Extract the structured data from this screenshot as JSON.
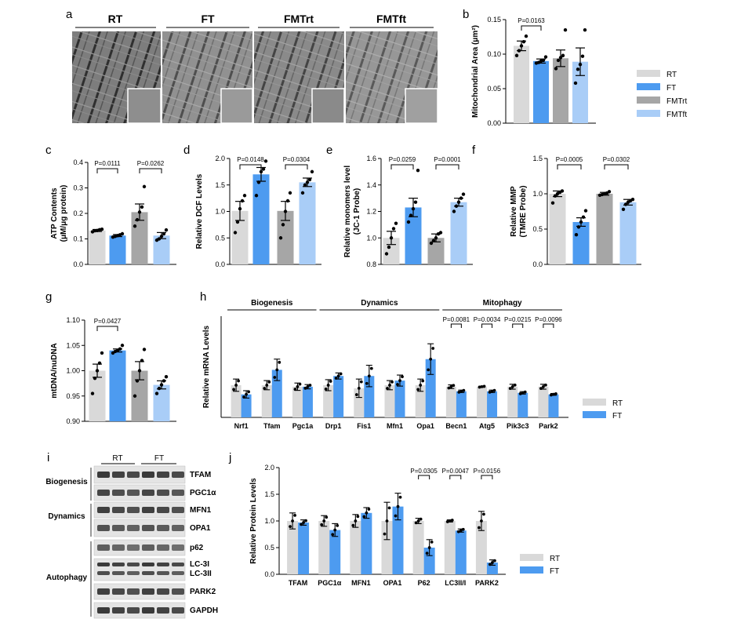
{
  "colors": {
    "RT": "#d9d9d9",
    "FT": "#4d9bf0",
    "FMTrt": "#a6a6a6",
    "FMTft": "#a9cdf7"
  },
  "panel_letters": [
    "a",
    "b",
    "c",
    "d",
    "e",
    "f",
    "g",
    "h",
    "i",
    "j"
  ],
  "micrographs": {
    "labels": [
      "RT",
      "FT",
      "FMTrt",
      "FMTft"
    ]
  },
  "chart_data": [
    {
      "id": "b",
      "type": "bar",
      "ylabel": "Mitochondrial Area (μm²)",
      "ylim": [
        0,
        0.15
      ],
      "yticks": [
        "0.00",
        "0.05",
        "0.10",
        "0.15"
      ],
      "categories": [
        "RT",
        "FT",
        "FMTrt",
        "FMTft"
      ],
      "values": [
        0.112,
        0.09,
        0.094,
        0.089
      ],
      "errors": [
        0.007,
        0.003,
        0.012,
        0.02
      ],
      "points": [
        [
          0.098,
          0.105,
          0.112,
          0.118,
          0.126
        ],
        [
          0.087,
          0.088,
          0.09,
          0.091,
          0.096
        ],
        [
          0.079,
          0.091,
          0.095,
          0.098,
          0.135
        ],
        [
          0.058,
          0.078,
          0.085,
          0.097,
          0.135
        ]
      ],
      "pvalues": [
        {
          "a": 0,
          "b": 1,
          "text": "P=0.0163"
        }
      ],
      "legend": [
        "RT",
        "FT",
        "FMTrt",
        "FMTft"
      ]
    },
    {
      "id": "c",
      "type": "bar",
      "ylabel": "ATP Contents (μM/μg protein)",
      "ylim": [
        0,
        0.4
      ],
      "yticks": [
        "0.0",
        "0.1",
        "0.2",
        "0.3",
        "0.4"
      ],
      "categories": [
        "RT",
        "FT",
        "FMTrt",
        "FMTft"
      ],
      "values": [
        0.133,
        0.113,
        0.205,
        0.113
      ],
      "errors": [
        0.004,
        0.004,
        0.032,
        0.012
      ],
      "points": [
        [
          0.128,
          0.132,
          0.133,
          0.136,
          0.138
        ],
        [
          0.107,
          0.11,
          0.113,
          0.116,
          0.12
        ],
        [
          0.15,
          0.175,
          0.205,
          0.225,
          0.305
        ],
        [
          0.095,
          0.1,
          0.11,
          0.12,
          0.135
        ]
      ],
      "pvalues": [
        {
          "a": 0,
          "b": 1,
          "text": "P=0.0111"
        },
        {
          "a": 2,
          "b": 3,
          "text": "P=0.0262"
        }
      ]
    },
    {
      "id": "d",
      "type": "bar",
      "ylabel": "Relative DCF Levels",
      "ylim": [
        0,
        2.0
      ],
      "yticks": [
        "0.0",
        "0.5",
        "1.0",
        "1.5",
        "2.0"
      ],
      "categories": [
        "RT",
        "FT",
        "FMTrt",
        "FMTft"
      ],
      "values": [
        1.01,
        1.7,
        1.01,
        1.55
      ],
      "errors": [
        0.18,
        0.13,
        0.18,
        0.08
      ],
      "points": [
        [
          0.6,
          0.8,
          1.05,
          1.2,
          1.3
        ],
        [
          1.3,
          1.55,
          1.75,
          1.8,
          1.95
        ],
        [
          0.5,
          0.75,
          1.0,
          1.2,
          1.35
        ],
        [
          1.35,
          1.5,
          1.55,
          1.6,
          1.75
        ]
      ],
      "pvalues": [
        {
          "a": 0,
          "b": 1,
          "text": "P=0.0148"
        },
        {
          "a": 2,
          "b": 3,
          "text": "P=0.0304"
        }
      ]
    },
    {
      "id": "e",
      "type": "bar",
      "ylabel": "Relative monomers level (JC-1 Probe)",
      "ylim": [
        0.8,
        1.6
      ],
      "yticks": [
        "0.8",
        "1.0",
        "1.2",
        "1.4",
        "1.6"
      ],
      "categories": [
        "RT",
        "FT",
        "FMTrt",
        "FMTft"
      ],
      "values": [
        1.0,
        1.23,
        1.0,
        1.27
      ],
      "errors": [
        0.05,
        0.07,
        0.03,
        0.03
      ],
      "points": [
        [
          0.88,
          0.93,
          1.0,
          1.07,
          1.11
        ],
        [
          1.12,
          1.17,
          1.22,
          1.27,
          1.51
        ],
        [
          0.96,
          0.98,
          1.0,
          1.03,
          1.04
        ],
        [
          1.2,
          1.24,
          1.27,
          1.3,
          1.33
        ]
      ],
      "pvalues": [
        {
          "a": 0,
          "b": 1,
          "text": "P=0.0259"
        },
        {
          "a": 2,
          "b": 3,
          "text": "P=0.0001"
        }
      ]
    },
    {
      "id": "f",
      "type": "bar",
      "ylabel": "Relative MMP (TMRE Probe)",
      "ylim": [
        0,
        1.5
      ],
      "yticks": [
        "0.0",
        "0.5",
        "1.0",
        "1.5"
      ],
      "categories": [
        "RT",
        "FT",
        "FMTrt",
        "FMTft"
      ],
      "values": [
        1.0,
        0.6,
        1.0,
        0.88
      ],
      "errors": [
        0.04,
        0.06,
        0.02,
        0.04
      ],
      "points": [
        [
          0.87,
          0.97,
          1.0,
          1.02,
          1.04
        ],
        [
          0.42,
          0.53,
          0.6,
          0.67,
          0.76
        ],
        [
          0.98,
          0.99,
          1.0,
          1.01,
          1.03
        ],
        [
          0.78,
          0.85,
          0.88,
          0.9,
          0.92
        ]
      ],
      "pvalues": [
        {
          "a": 0,
          "b": 1,
          "text": "P=0.0005"
        },
        {
          "a": 2,
          "b": 3,
          "text": "P=0.0302"
        }
      ]
    },
    {
      "id": "g",
      "type": "bar",
      "ylabel": "mtDNA/nuDNA",
      "ylim": [
        0.9,
        1.1
      ],
      "yticks": [
        "0.90",
        "0.95",
        "1.00",
        "1.05",
        "1.10"
      ],
      "categories": [
        "RT",
        "FT",
        "FMTrt",
        "FMTft"
      ],
      "values": [
        1.0,
        1.04,
        1.0,
        0.972
      ],
      "errors": [
        0.013,
        0.003,
        0.018,
        0.008
      ],
      "points": [
        [
          0.955,
          0.985,
          1.0,
          1.015,
          1.035
        ],
        [
          1.035,
          1.038,
          1.04,
          1.043,
          1.05
        ],
        [
          0.95,
          0.98,
          1.0,
          1.02,
          1.042
        ],
        [
          0.955,
          0.965,
          0.972,
          0.98,
          0.988
        ]
      ],
      "pvalues": [
        {
          "a": 0,
          "b": 1,
          "text": "P=0.0427"
        }
      ]
    },
    {
      "id": "h",
      "type": "bar",
      "ylabel": "Relative mRNA Levels",
      "ylim": [
        0,
        3.3
      ],
      "categories": [
        "Nrf1",
        "Tfam",
        "Pgc1a",
        "Drp1",
        "Fis1",
        "Mfn1",
        "Opa1",
        "Becn1",
        "Atg5",
        "Pik3c3",
        "Park2"
      ],
      "series": [
        {
          "name": "RT",
          "values": [
            1.05,
            1.05,
            1.0,
            1.05,
            0.95,
            1.05,
            1.05,
            1.0,
            1.0,
            1.0,
            1.0
          ],
          "errors": [
            0.2,
            0.15,
            0.12,
            0.18,
            0.3,
            0.15,
            0.2,
            0.06,
            0.02,
            0.08,
            0.08
          ]
        },
        {
          "name": "FT",
          "values": [
            0.75,
            1.55,
            1.0,
            1.35,
            1.35,
            1.2,
            1.9,
            0.85,
            0.85,
            0.8,
            0.75
          ],
          "errors": [
            0.12,
            0.35,
            0.07,
            0.1,
            0.35,
            0.18,
            0.5,
            0.04,
            0.04,
            0.04,
            0.03
          ]
        }
      ],
      "groups": [
        {
          "name": "Biogenesis",
          "from": 0,
          "to": 2
        },
        {
          "name": "Dynamics",
          "from": 3,
          "to": 6
        },
        {
          "name": "Mitophagy",
          "from": 7,
          "to": 10
        }
      ],
      "pvalues": [
        {
          "i": 7,
          "text": "P=0.0081"
        },
        {
          "i": 8,
          "text": "P=0.0034"
        },
        {
          "i": 9,
          "text": "P=0.0215"
        },
        {
          "i": 10,
          "text": "P=0.0096"
        }
      ],
      "legend": [
        "RT",
        "FT"
      ]
    },
    {
      "id": "j",
      "type": "bar",
      "ylabel": "Relative Protein Levels",
      "ylim": [
        0,
        2.0
      ],
      "yticks": [
        "0.0",
        "0.5",
        "1.0",
        "1.5",
        "2.0"
      ],
      "categories": [
        "TFAM",
        "PGC1α",
        "MFN1",
        "OPA1",
        "P62",
        "LC3II/I",
        "PARK2"
      ],
      "series": [
        {
          "name": "RT",
          "values": [
            1.0,
            1.0,
            1.0,
            1.0,
            1.0,
            1.0,
            1.0
          ],
          "errors": [
            0.15,
            0.1,
            0.12,
            0.35,
            0.05,
            0.02,
            0.18
          ]
        },
        {
          "name": "FT",
          "values": [
            0.97,
            0.83,
            1.15,
            1.27,
            0.5,
            0.82,
            0.22
          ],
          "errors": [
            0.05,
            0.12,
            0.1,
            0.25,
            0.15,
            0.03,
            0.05
          ]
        }
      ],
      "pvalues": [
        {
          "i": 4,
          "text": "P=0.0305"
        },
        {
          "i": 5,
          "text": "P=0.0047"
        },
        {
          "i": 6,
          "text": "P=0.0156"
        }
      ],
      "legend": [
        "RT",
        "FT"
      ]
    }
  ],
  "blot": {
    "groups": [
      "RT",
      "FT"
    ],
    "categories": [
      "Biogenesis",
      "Dynamics",
      "Autophagy"
    ],
    "bands": [
      "TFAM",
      "PGC1α",
      "MFN1",
      "OPA1",
      "p62",
      "LC-3I",
      "LC-3II",
      "PARK2",
      "GAPDH"
    ]
  }
}
